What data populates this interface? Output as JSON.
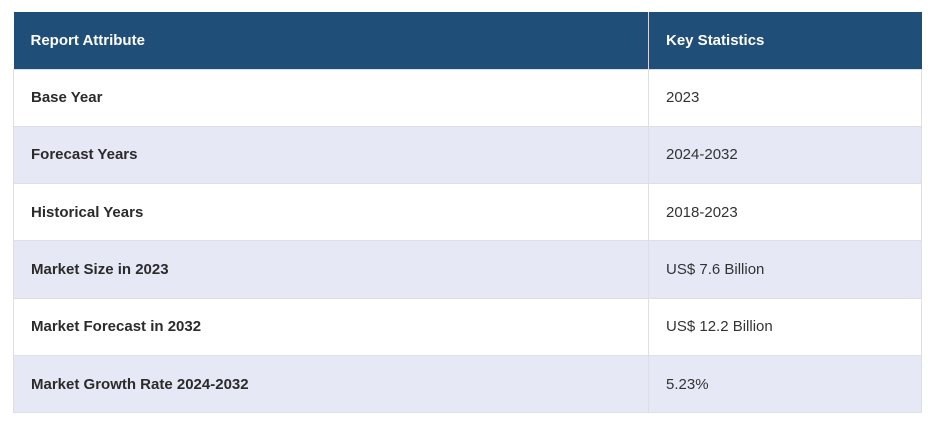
{
  "table": {
    "headers": [
      "Report Attribute",
      "Key Statistics"
    ],
    "rows": [
      {
        "attribute": "Base Year",
        "value": "2023"
      },
      {
        "attribute": "Forecast Years",
        "value": "2024-2032"
      },
      {
        "attribute": "Historical Years",
        "value": "2018-2023"
      },
      {
        "attribute": "Market Size in 2023",
        "value": "US$ 7.6 Billion"
      },
      {
        "attribute": "Market Forecast in 2032",
        "value": "US$ 12.2 Billion"
      },
      {
        "attribute": "Market Growth Rate 2024-2032",
        "value": "5.23%"
      }
    ]
  },
  "colors": {
    "header_bg": "#1f4e79",
    "row_alt_bg": "#e6e9f5",
    "row_bg": "#ffffff"
  }
}
